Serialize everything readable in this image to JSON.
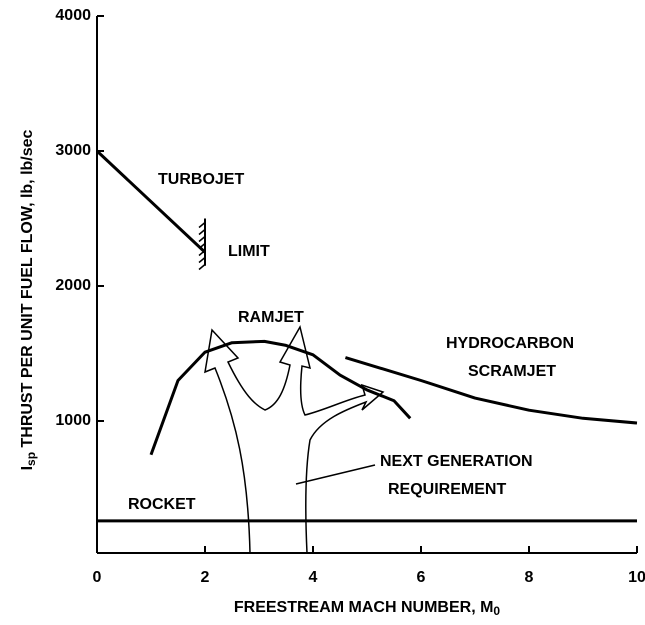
{
  "chart_data": {
    "type": "line",
    "ylabel": {
      "main": "I",
      "sub": "sp",
      "rest": " THRUST PER UNIT FUEL FLOW, lb, lb/sec"
    },
    "xlabel": {
      "main": "FREESTREAM MACH NUMBER, M",
      "sub": "0"
    },
    "xlim": [
      0,
      10
    ],
    "xticks": [
      0,
      2,
      4,
      6,
      8,
      10
    ],
    "ylim": [
      0,
      4000
    ],
    "yticks": [
      1000,
      2000,
      3000,
      4000
    ],
    "series": [
      {
        "name": "TURBOJET",
        "color": "#000000",
        "x": [
          0,
          2
        ],
        "values": [
          3000,
          2250
        ]
      },
      {
        "name": "RAMJET",
        "color": "#000000",
        "x": [
          1,
          1.5,
          2,
          2.5,
          3.1,
          3.5,
          4,
          4.5,
          5,
          5.5,
          5.8
        ],
        "values": [
          750,
          1300,
          1510,
          1580,
          1590,
          1560,
          1490,
          1340,
          1230,
          1150,
          1020
        ]
      },
      {
        "name": "HYDROCARBON SCRAMJET",
        "color": "#000000",
        "x": [
          4.6,
          6,
          7,
          8,
          9,
          10
        ],
        "values": [
          1470,
          1300,
          1170,
          1080,
          1020,
          985
        ]
      },
      {
        "name": "ROCKET",
        "color": "#000000",
        "x": [
          0,
          10
        ],
        "values": [
          260,
          260
        ]
      }
    ],
    "limit_line": {
      "x": 2,
      "y": [
        2150,
        2500
      ]
    },
    "annotations": [
      "TURBOJET",
      "LIMIT",
      "RAMJET",
      "HYDROCARBON",
      "SCRAMJET",
      "ROCKET",
      "NEXT GENERATION",
      "REQUIREMENT"
    ]
  }
}
